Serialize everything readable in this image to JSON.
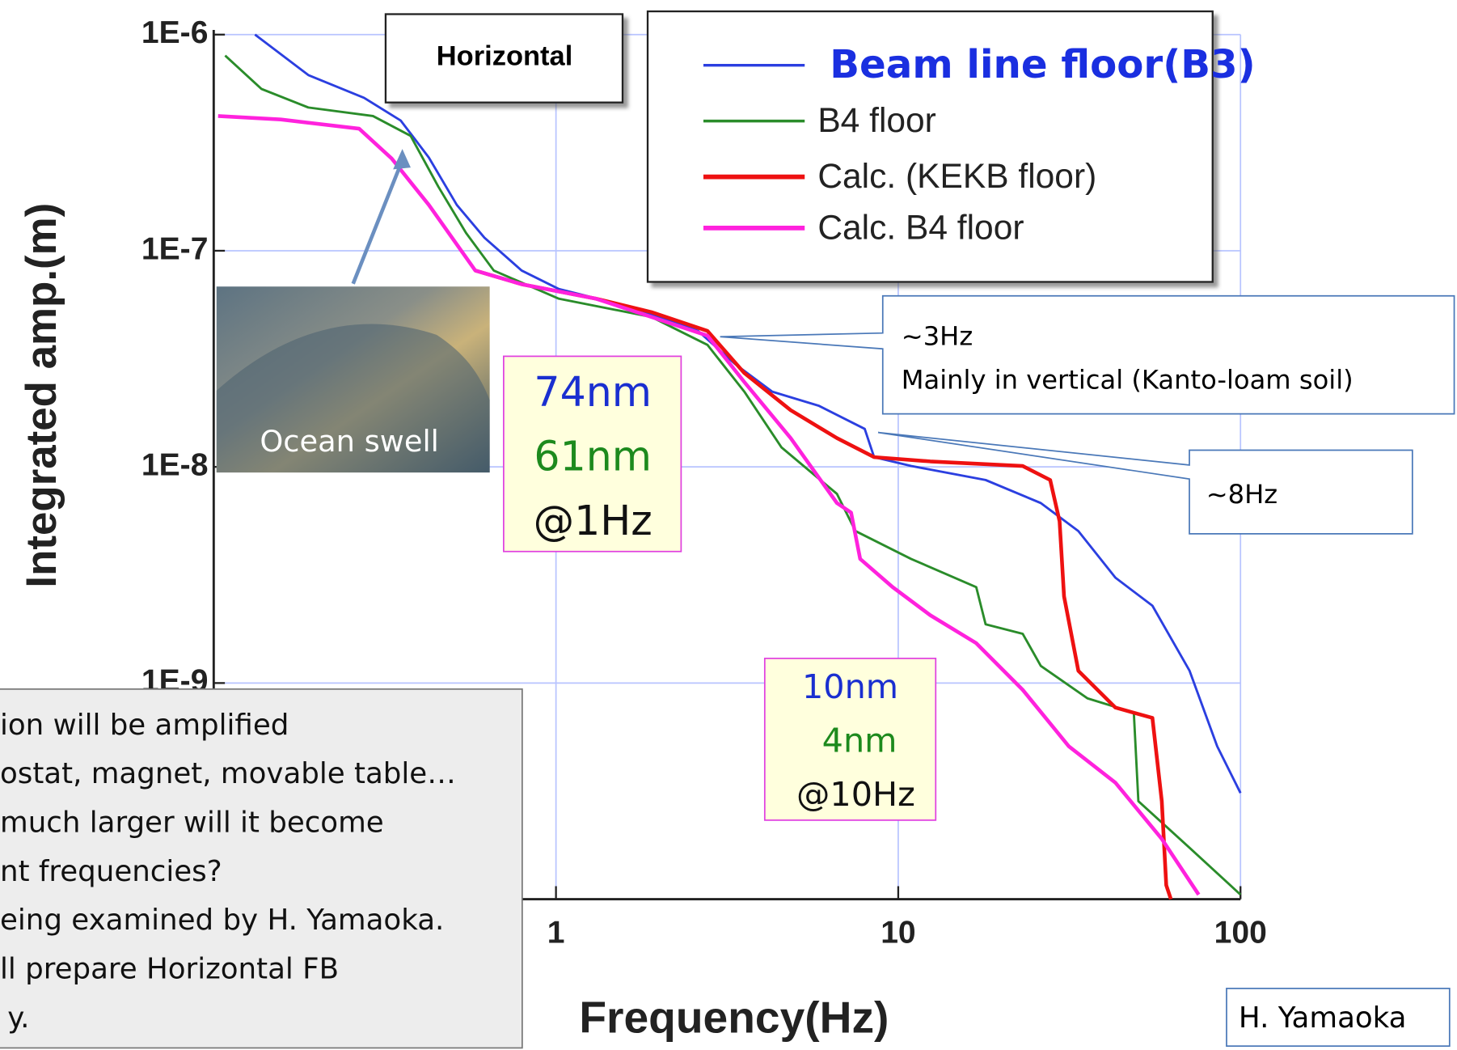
{
  "chart_data": {
    "type": "line",
    "xscale": "log",
    "yscale": "log",
    "xlim": [
      0.1,
      100
    ],
    "ylim": [
      1e-10,
      1e-06
    ],
    "xticks": [
      1,
      10,
      100
    ],
    "yticks": [
      {
        "value": 1e-09,
        "label": "1E-9"
      },
      {
        "value": 1e-08,
        "label": "1E-8"
      },
      {
        "value": 1e-07,
        "label": "1E-7"
      },
      {
        "value": 1e-06,
        "label": "1E-6"
      }
    ],
    "grid": true,
    "xlabel": "Frequency(Hz)",
    "ylabel": "Integrated amp.(m)",
    "series": [
      {
        "name": "Beam line floor(B3)",
        "color": "#2b3fe0",
        "x": [
          0.132,
          0.189,
          0.275,
          0.352,
          0.425,
          0.513,
          0.618,
          0.794,
          1.02,
          1.68,
          2.6,
          3.33,
          4.28,
          5.85,
          7.98,
          8.5,
          10.9,
          18.0,
          26.1,
          33.6,
          43.1,
          55.3,
          71.0,
          85.5,
          100
        ],
        "values": [
          1e-06,
          6.5e-07,
          5.1e-07,
          4e-07,
          2.7e-07,
          1.63e-07,
          1.15e-07,
          8.1e-08,
          6.65e-08,
          5.46e-08,
          4.26e-08,
          3e-08,
          2.23e-08,
          1.92e-08,
          1.5e-08,
          1.11e-08,
          1.01e-08,
          8.7e-09,
          6.8e-09,
          5.05e-09,
          3.07e-09,
          2.28e-09,
          1.14e-09,
          5.1e-10,
          3.1e-10
        ]
      },
      {
        "name": "B4 floor",
        "color": "#2a8c2a",
        "x": [
          0.108,
          0.138,
          0.189,
          0.292,
          0.376,
          0.453,
          0.546,
          0.658,
          1.02,
          1.9,
          2.77,
          3.55,
          4.56,
          6.62,
          7.5,
          10.9,
          16.9,
          18.0,
          23.1,
          26.1,
          35.7,
          48.8,
          50.3,
          71.0,
          100
        ],
        "values": [
          8e-07,
          5.6e-07,
          4.6e-07,
          4.2e-07,
          3.4e-07,
          1.98e-07,
          1.21e-07,
          8.1e-08,
          6e-08,
          4.94e-08,
          3.67e-08,
          2.23e-08,
          1.23e-08,
          7.5e-09,
          5.05e-09,
          3.75e-09,
          2.78e-09,
          1.87e-09,
          1.69e-09,
          1.2e-09,
          8.5e-10,
          7.3e-10,
          2.84e-10,
          1.73e-10,
          1.05e-10
        ]
      },
      {
        "name": "Calc. (KEKB floor)",
        "color": "#ee1111",
        "x": [
          0.581,
          0.794,
          1.31,
          1.9,
          2.77,
          3.55,
          4.85,
          6.62,
          8.5,
          12.4,
          23.1,
          27.8,
          29.6,
          30.5,
          33.6,
          43.1,
          55.3,
          58.9,
          60.7,
          62.6
        ],
        "values": [
          8.1e-08,
          7e-08,
          6e-08,
          5.2e-08,
          4.26e-08,
          2.72e-08,
          1.83e-08,
          1.36e-08,
          1.11e-08,
          1.06e-08,
          1.01e-08,
          8.7e-09,
          5.6e-09,
          2.52e-09,
          1.14e-09,
          7.7e-10,
          6.9e-10,
          2.84e-10,
          1.16e-10,
          1e-10
        ]
      },
      {
        "name": "Calc. B4 floor",
        "color": "#ff22dd",
        "x": [
          0.103,
          0.157,
          0.266,
          0.331,
          0.425,
          0.581,
          0.794,
          1.31,
          1.9,
          2.77,
          3.55,
          4.85,
          6.62,
          7.28,
          7.74,
          9.63,
          12.4,
          16.9,
          23.1,
          31.5,
          43.1,
          58.9,
          75.5
        ],
        "values": [
          4.2e-07,
          4.05e-07,
          3.67e-07,
          2.67e-07,
          1.63e-07,
          8.1e-08,
          7e-08,
          6e-08,
          4.94e-08,
          4.05e-08,
          2.47e-08,
          1.36e-08,
          6.8e-09,
          6.15e-09,
          3.75e-09,
          2.78e-09,
          2.06e-09,
          1.53e-09,
          9.3e-10,
          5.1e-10,
          3.46e-10,
          1.9e-10,
          1.05e-10
        ]
      }
    ],
    "panel_label": "Horizontal",
    "photo_caption": "Ocean swell",
    "callout_3hz": [
      "~3Hz",
      "Mainly in vertical (Kanto-loam soil)"
    ],
    "callout_8hz": "~8Hz",
    "box_1hz": [
      "74nm",
      "61nm",
      "@1Hz"
    ],
    "box_10hz": [
      "10nm",
      "4nm",
      "@10Hz"
    ],
    "note": [
      "ion will be amplified",
      "ostat, magnet, movable table…",
      "much larger will it become",
      "nt frequencies?",
      "eing examined by H. Yamaoka.",
      "ll prepare Horizontal FB",
      "y."
    ],
    "credit": "H. Yamaoka"
  }
}
